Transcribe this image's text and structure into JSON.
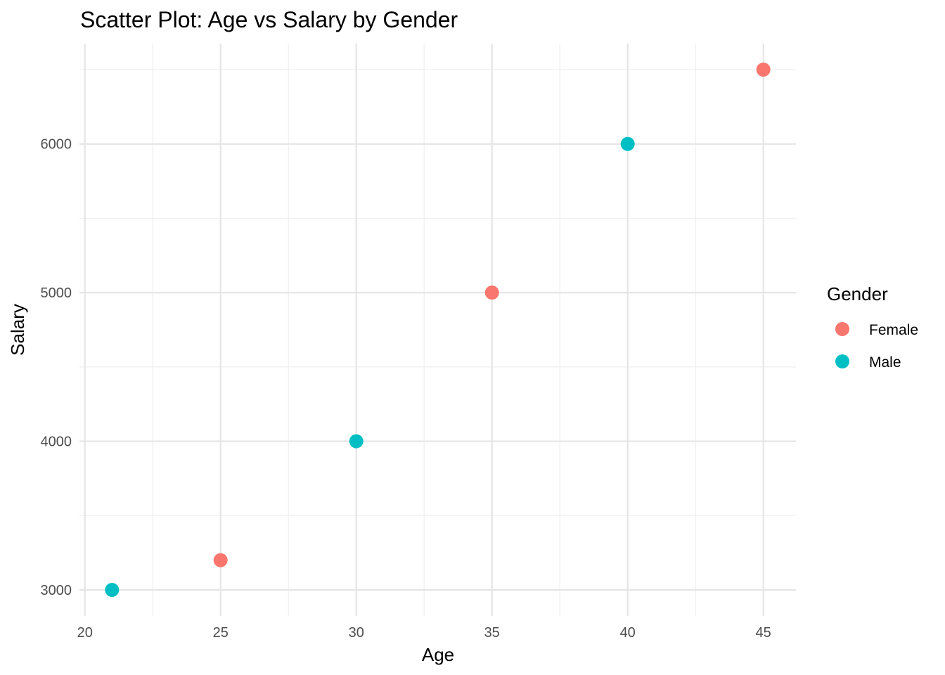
{
  "chart_data": {
    "type": "scatter",
    "title": "Scatter Plot: Age vs Salary by Gender",
    "xlabel": "Age",
    "ylabel": "Salary",
    "xlim": [
      19.8,
      46.2
    ],
    "ylim": [
      2825,
      6675
    ],
    "x_ticks": [
      20,
      25,
      30,
      35,
      40,
      45
    ],
    "x_minor_ticks": [
      22.5,
      27.5,
      32.5,
      37.5,
      42.5
    ],
    "y_ticks": [
      3000,
      4000,
      5000,
      6000
    ],
    "y_minor_ticks": [
      3500,
      4500,
      5500,
      6500
    ],
    "grid": true,
    "legend": {
      "title": "Gender",
      "position": "right"
    },
    "series": [
      {
        "name": "Female",
        "color": "#F8766D",
        "points": [
          {
            "x": 25,
            "y": 3200
          },
          {
            "x": 35,
            "y": 5000
          },
          {
            "x": 45,
            "y": 6500
          }
        ]
      },
      {
        "name": "Male",
        "color": "#00BFC4",
        "points": [
          {
            "x": 21,
            "y": 3000
          },
          {
            "x": 30,
            "y": 4000
          },
          {
            "x": 40,
            "y": 6000
          }
        ]
      }
    ]
  }
}
